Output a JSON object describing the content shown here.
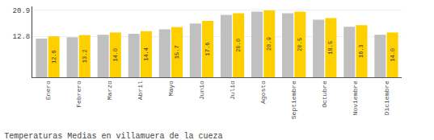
{
  "chart_data": {
    "type": "bar",
    "title": "Temperaturas Medias en villamuera de la cueza",
    "categories": [
      "Enero",
      "Febrero",
      "Marzo",
      "Abril",
      "Mayo",
      "Junio",
      "Julio",
      "Agosto",
      "Septiembre",
      "Octubre",
      "Noviembre",
      "Diciembre"
    ],
    "series": [
      {
        "color": "#C0C0C0",
        "values": [
          12.1,
          12.5,
          13.3,
          13.6,
          15.0,
          16.8,
          19.5,
          20.5,
          20.0,
          18.0,
          15.8,
          13.3
        ]
      },
      {
        "color": "#FFD000",
        "values": [
          12.8,
          13.2,
          14.0,
          14.4,
          15.7,
          17.6,
          20.0,
          20.9,
          20.5,
          18.5,
          16.3,
          14.0
        ],
        "value_labels": [
          "12.8",
          "13.2",
          "14.0",
          "14.4",
          "15.7",
          "17.6",
          "20.0",
          "20.9",
          "20.5",
          "18.5",
          "16.3",
          "14.0"
        ],
        "data_labels": true
      }
    ],
    "ylim": [
      0,
      22.154
    ],
    "yticks": [
      12.8,
      20.9
    ],
    "y2lim": [
      0,
      22.154
    ],
    "y2ticks": [
      12.8,
      20.9
    ],
    "grid": true
  }
}
